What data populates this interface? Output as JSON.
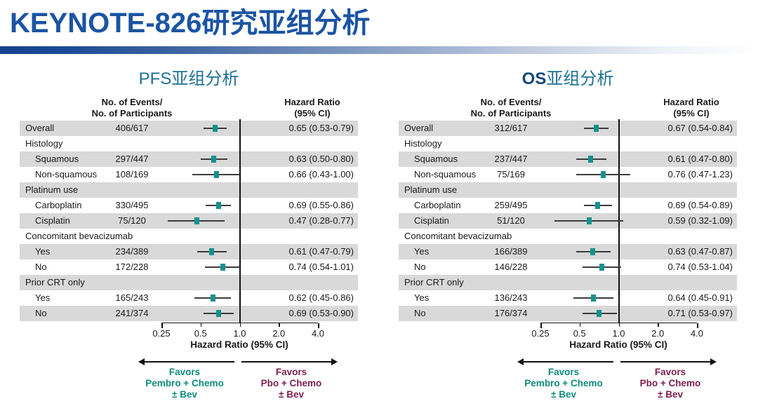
{
  "title": "KEYNOTE-826研究亚组分析",
  "colors": {
    "title_blue": "#1b54a3",
    "panel_title_teal": "#1e7193",
    "os_navy": "#17497c",
    "marker_teal": "#15908c",
    "favors_teal": "#0f8c7d",
    "favors_maroon": "#7b1f4e",
    "row_shade": "#d9d9d9"
  },
  "chart_data": [
    {
      "type": "forest",
      "title_latin": "PFS",
      "title_cn": "亚组分析",
      "col_header_events_line1": "No. of Events/",
      "col_header_events_line2": "No. of Participants",
      "col_header_hr_line1": "Hazard Ratio",
      "col_header_hr_line2": "(95% CI)",
      "axis_label": "Hazard Ratio (95% CI)",
      "axis_scale": "log2",
      "xlim": [
        0.25,
        4.0
      ],
      "axis_ticks": [
        0.25,
        0.5,
        1.0,
        2.0,
        4.0
      ],
      "axis_tick_labels": [
        "0.25",
        "0.5",
        "1.0",
        "2.0",
        "4.0"
      ],
      "reference_line": 1.0,
      "favors_left": [
        "Favors",
        "Pembro + Chemo",
        "± Bev"
      ],
      "favors_right": [
        "Favors",
        "Pbo + Chemo",
        "± Bev"
      ],
      "rows": [
        {
          "label": "Overall",
          "indent": false,
          "events": "406/617",
          "hr": 0.65,
          "lo": 0.53,
          "hi": 0.79,
          "hr_text": "0.65 (0.53-0.79)",
          "shaded": true
        },
        {
          "label": "Histology",
          "header": true,
          "shaded": false
        },
        {
          "label": "Squamous",
          "indent": true,
          "events": "297/447",
          "hr": 0.63,
          "lo": 0.5,
          "hi": 0.8,
          "hr_text": "0.63 (0.50-0.80)",
          "shaded": true
        },
        {
          "label": "Non-squamous",
          "indent": true,
          "events": "108/169",
          "hr": 0.66,
          "lo": 0.43,
          "hi": 1.0,
          "hr_text": "0.66 (0.43-1.00)",
          "shaded": false
        },
        {
          "label": "Platinum use",
          "header": true,
          "shaded": true
        },
        {
          "label": "Carboplatin",
          "indent": true,
          "events": "330/495",
          "hr": 0.69,
          "lo": 0.55,
          "hi": 0.86,
          "hr_text": "0.69 (0.55-0.86)",
          "shaded": false
        },
        {
          "label": "Cisplatin",
          "indent": true,
          "events": "75/120",
          "hr": 0.47,
          "lo": 0.28,
          "hi": 0.77,
          "hr_text": "0.47 (0.28-0.77)",
          "shaded": true
        },
        {
          "label": "Concomitant bevacizumab",
          "header": true,
          "shaded": false
        },
        {
          "label": "Yes",
          "indent": true,
          "events": "234/389",
          "hr": 0.61,
          "lo": 0.47,
          "hi": 0.79,
          "hr_text": "0.61 (0.47-0.79)",
          "shaded": true
        },
        {
          "label": "No",
          "indent": true,
          "events": "172/228",
          "hr": 0.74,
          "lo": 0.54,
          "hi": 1.01,
          "hr_text": "0.74 (0.54-1.01)",
          "shaded": false
        },
        {
          "label": "Prior CRT only",
          "header": true,
          "shaded": true
        },
        {
          "label": "Yes",
          "indent": true,
          "events": "165/243",
          "hr": 0.62,
          "lo": 0.45,
          "hi": 0.86,
          "hr_text": "0.62 (0.45-0.86)",
          "shaded": false
        },
        {
          "label": "No",
          "indent": true,
          "events": "241/374",
          "hr": 0.69,
          "lo": 0.53,
          "hi": 0.9,
          "hr_text": "0.69 (0.53-0.90)",
          "shaded": true
        }
      ]
    },
    {
      "type": "forest",
      "title_latin": "OS",
      "title_cn": "亚组分析",
      "col_header_events_line1": "No. of Events/",
      "col_header_events_line2": "No. of Participants",
      "col_header_hr_line1": "Hazard Ratio",
      "col_header_hr_line2": "(95% CI)",
      "axis_label": "Hazard Ratio (95% CI)",
      "axis_scale": "log2",
      "xlim": [
        0.25,
        4.0
      ],
      "axis_ticks": [
        0.25,
        0.5,
        1.0,
        2.0,
        4.0
      ],
      "axis_tick_labels": [
        "0.25",
        "0.5",
        "1.0",
        "2.0",
        "4.0"
      ],
      "reference_line": 1.0,
      "favors_left": [
        "Favors",
        "Pembro + Chemo",
        "± Bev"
      ],
      "favors_right": [
        "Favors",
        "Pbo + Chemo",
        "± Bev"
      ],
      "rows": [
        {
          "label": "Overall",
          "indent": false,
          "events": "312/617",
          "hr": 0.67,
          "lo": 0.54,
          "hi": 0.84,
          "hr_text": "0.67 (0.54-0.84)",
          "shaded": true
        },
        {
          "label": "Histology",
          "header": true,
          "shaded": false
        },
        {
          "label": "Squamous",
          "indent": true,
          "events": "237/447",
          "hr": 0.61,
          "lo": 0.47,
          "hi": 0.8,
          "hr_text": "0.61 (0.47-0.80)",
          "shaded": true
        },
        {
          "label": "Non-squamous",
          "indent": true,
          "events": "75/169",
          "hr": 0.76,
          "lo": 0.47,
          "hi": 1.23,
          "hr_text": "0.76 (0.47-1.23)",
          "shaded": false
        },
        {
          "label": "Platinum use",
          "header": true,
          "shaded": true
        },
        {
          "label": "Carboplatin",
          "indent": true,
          "events": "259/495",
          "hr": 0.69,
          "lo": 0.54,
          "hi": 0.89,
          "hr_text": "0.69 (0.54-0.89)",
          "shaded": false
        },
        {
          "label": "Cisplatin",
          "indent": true,
          "events": "51/120",
          "hr": 0.59,
          "lo": 0.32,
          "hi": 1.09,
          "hr_text": "0.59 (0.32-1.09)",
          "shaded": true
        },
        {
          "label": "Concomitant bevacizumab",
          "header": true,
          "shaded": false
        },
        {
          "label": "Yes",
          "indent": true,
          "events": "166/389",
          "hr": 0.63,
          "lo": 0.47,
          "hi": 0.87,
          "hr_text": "0.63 (0.47-0.87)",
          "shaded": true
        },
        {
          "label": "No",
          "indent": true,
          "events": "146/228",
          "hr": 0.74,
          "lo": 0.53,
          "hi": 1.04,
          "hr_text": "0.74 (0.53-1.04)",
          "shaded": false
        },
        {
          "label": "Prior CRT only",
          "header": true,
          "shaded": true
        },
        {
          "label": "Yes",
          "indent": true,
          "events": "136/243",
          "hr": 0.64,
          "lo": 0.45,
          "hi": 0.91,
          "hr_text": "0.64 (0.45-0.91)",
          "shaded": false
        },
        {
          "label": "No",
          "indent": true,
          "events": "176/374",
          "hr": 0.71,
          "lo": 0.53,
          "hi": 0.97,
          "hr_text": "0.71 (0.53-0.97)",
          "shaded": true
        }
      ]
    }
  ]
}
